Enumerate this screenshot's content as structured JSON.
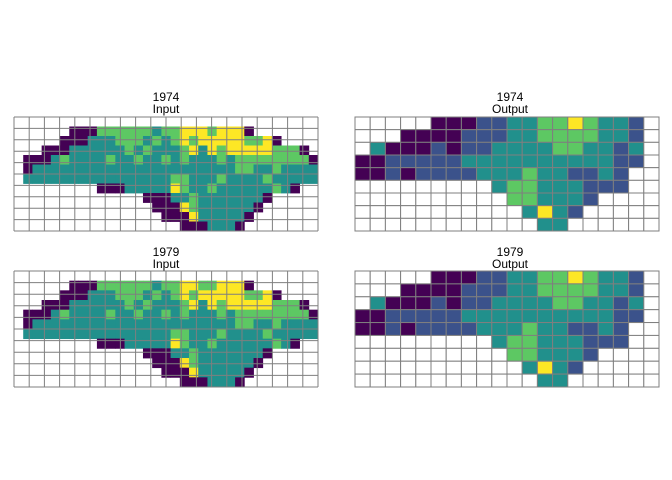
{
  "chart_data": {
    "type": "heatmap",
    "layout": "2x2 facet grid",
    "palette": [
      "#440154",
      "#3b528b",
      "#21908c",
      "#5dc863",
      "#fde725"
    ],
    "grid_color": "#7f7f7f",
    "grid": true,
    "legend": "none",
    "axes_shown": false,
    "panels": [
      {
        "title": "1974",
        "subtitle": "Input",
        "kind": "map",
        "map_rows": [
          "000000000000000000000000000000000",
          "000000000333333233444344400000000",
          "000000002223332323434444433400000",
          "000000222222323222342434444433300",
          "000023222232232232322232333333330",
          "002222222222222222222222332232222",
          "022222222222222223322232222322222",
          "000000000000222224322322222232000",
          "000000000000000002232222222000000",
          "000000000000000000432222220000000",
          "000000000000000000042222200000000",
          "000000000000000000000222000000000"
        ]
      },
      {
        "title": "1974",
        "subtitle": "Output",
        "kind": "grid",
        "cell_rows": [
          "...........",
          "...........",
          "...........",
          "...........",
          "...........",
          "..........."
        ],
        "values": [
          [
            null,
            null,
            null,
            null,
            null,
            0,
            0,
            0,
            1,
            1,
            2,
            2,
            3,
            3,
            4,
            3,
            2,
            2,
            1,
            null
          ],
          [
            null,
            null,
            null,
            0,
            0,
            0,
            0,
            1,
            1,
            1,
            2,
            2,
            3,
            3,
            3,
            3,
            2,
            2,
            1,
            null
          ],
          [
            null,
            2,
            0,
            0,
            0,
            1,
            0,
            1,
            1,
            2,
            2,
            2,
            2,
            3,
            3,
            2,
            2,
            1,
            2,
            null
          ],
          [
            0,
            0,
            1,
            1,
            1,
            1,
            1,
            2,
            2,
            2,
            2,
            2,
            2,
            2,
            2,
            2,
            2,
            1,
            1,
            null
          ],
          [
            0,
            0,
            1,
            0,
            1,
            1,
            1,
            1,
            2,
            2,
            2,
            3,
            2,
            2,
            1,
            1,
            2,
            1,
            null,
            null
          ],
          [
            null,
            null,
            null,
            null,
            null,
            null,
            null,
            null,
            null,
            2,
            3,
            3,
            2,
            2,
            2,
            1,
            1,
            1,
            null,
            null
          ],
          [
            null,
            null,
            null,
            null,
            null,
            null,
            null,
            null,
            null,
            null,
            3,
            3,
            2,
            2,
            2,
            1,
            null,
            null,
            null,
            null
          ],
          [
            null,
            null,
            null,
            null,
            null,
            null,
            null,
            null,
            null,
            null,
            null,
            2,
            4,
            2,
            1,
            null,
            null,
            null,
            null,
            null
          ],
          [
            null,
            null,
            null,
            null,
            null,
            null,
            null,
            null,
            null,
            null,
            null,
            null,
            2,
            2,
            null,
            null,
            null,
            null,
            null,
            null
          ]
        ]
      },
      {
        "title": "1979",
        "subtitle": "Input",
        "kind": "map",
        "map_rows": [
          "000000000000000000000000000000000",
          "000000000333333233443344400000000",
          "000000002223332323434444433400000",
          "000000222222323222342434444433300",
          "000023222232232232322232333333330",
          "002222222222222222222222332232222",
          "022222222222222223322232222322222",
          "000000000000222224322322222232000",
          "000000000000000002232222222000000",
          "000000000000000000432222220000000",
          "000000000000000000042222200000000",
          "000000000000000000000222000000000"
        ]
      },
      {
        "title": "1979",
        "subtitle": "Output",
        "kind": "grid",
        "values": [
          [
            null,
            null,
            null,
            null,
            null,
            0,
            0,
            0,
            1,
            1,
            2,
            2,
            3,
            3,
            4,
            3,
            2,
            2,
            1,
            null
          ],
          [
            null,
            null,
            null,
            0,
            0,
            0,
            0,
            1,
            1,
            1,
            2,
            2,
            3,
            3,
            3,
            3,
            2,
            2,
            1,
            null
          ],
          [
            null,
            2,
            0,
            0,
            0,
            1,
            0,
            1,
            1,
            2,
            2,
            2,
            2,
            3,
            3,
            2,
            2,
            1,
            2,
            null
          ],
          [
            0,
            0,
            1,
            1,
            1,
            1,
            1,
            2,
            2,
            2,
            2,
            2,
            2,
            2,
            2,
            2,
            2,
            1,
            1,
            null
          ],
          [
            0,
            0,
            1,
            0,
            1,
            1,
            1,
            1,
            2,
            2,
            2,
            3,
            2,
            2,
            1,
            1,
            2,
            1,
            null,
            null
          ],
          [
            null,
            null,
            null,
            null,
            null,
            null,
            null,
            null,
            null,
            2,
            3,
            3,
            2,
            2,
            2,
            1,
            1,
            1,
            null,
            null
          ],
          [
            null,
            null,
            null,
            null,
            null,
            null,
            null,
            null,
            null,
            null,
            3,
            3,
            2,
            2,
            2,
            1,
            null,
            null,
            null,
            null
          ],
          [
            null,
            null,
            null,
            null,
            null,
            null,
            null,
            null,
            null,
            null,
            null,
            2,
            4,
            2,
            1,
            null,
            null,
            null,
            null,
            null
          ],
          [
            null,
            null,
            null,
            null,
            null,
            null,
            null,
            null,
            null,
            null,
            null,
            null,
            2,
            2,
            null,
            null,
            null,
            null,
            null,
            null
          ]
        ]
      }
    ]
  }
}
